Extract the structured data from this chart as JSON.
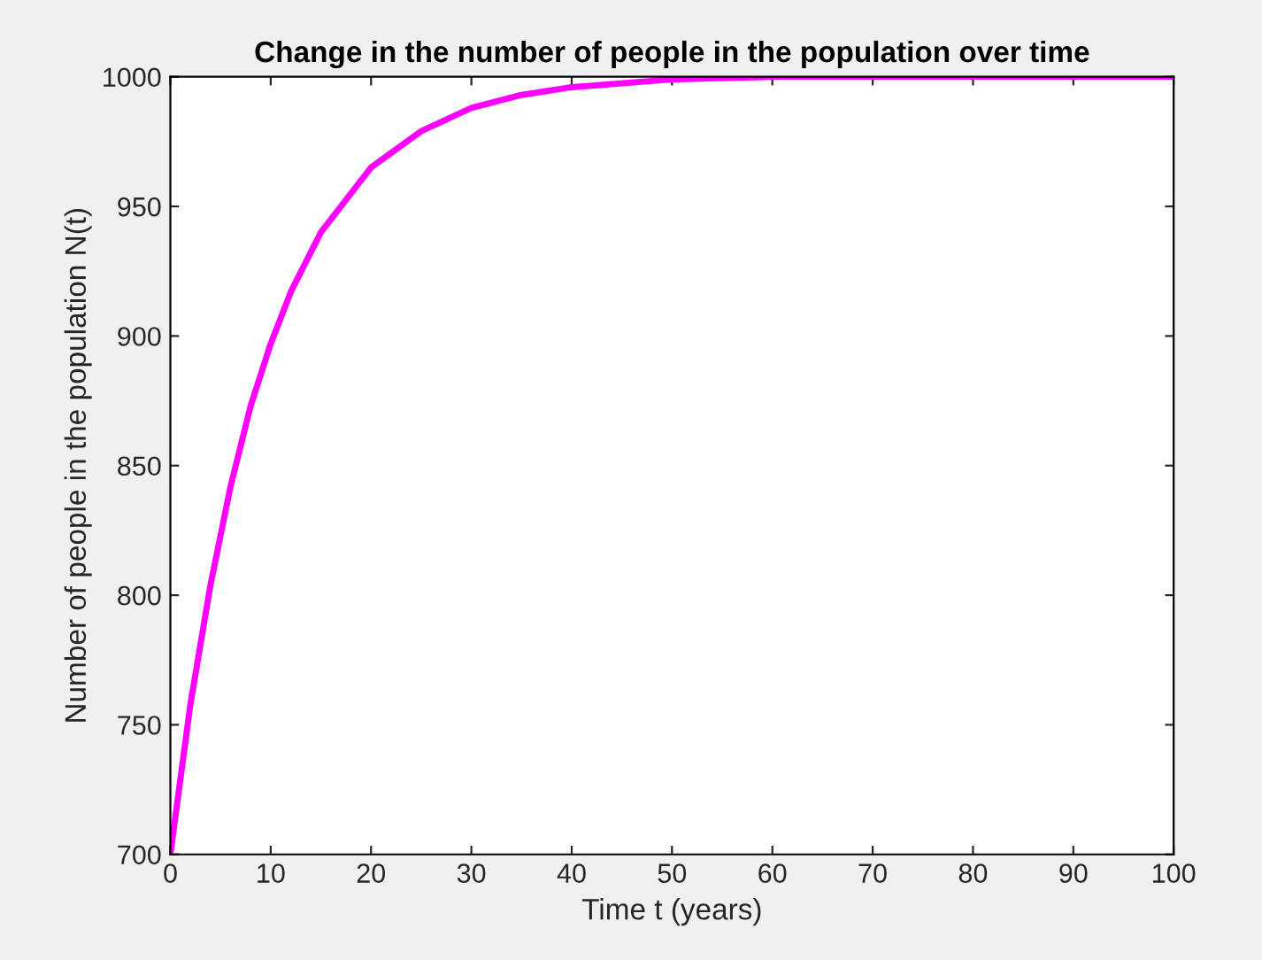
{
  "chart_data": {
    "type": "line",
    "title": "Change in the number of people in the population over time",
    "xlabel": "Time t (years)",
    "ylabel": "Number of people in the population N(t)",
    "x": [
      0,
      2,
      4,
      6,
      8,
      10,
      12,
      15,
      20,
      25,
      30,
      35,
      40,
      50,
      60,
      70,
      80,
      90,
      100
    ],
    "series": [
      {
        "color": "#ff00ff",
        "values": [
          700,
          758,
          804,
          842,
          873,
          897,
          917,
          940,
          965,
          979,
          988,
          993,
          996,
          999,
          1000,
          1000,
          1000,
          1000,
          1000
        ]
      }
    ],
    "xlim": [
      0,
      100
    ],
    "xticks": [
      0,
      10,
      20,
      30,
      40,
      50,
      60,
      70,
      80,
      90,
      100
    ],
    "ylim": [
      700,
      1000
    ],
    "yticks": [
      700,
      750,
      800,
      850,
      900,
      950,
      1000
    ],
    "grid": false,
    "marker": "none",
    "line_style": "solid"
  }
}
